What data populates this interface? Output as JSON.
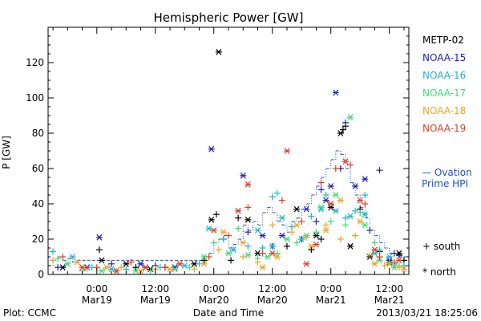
{
  "chart_data": {
    "type": "scatter",
    "title": "Hemispheric Power [GW]",
    "ylabel": "P [GW]",
    "xlabel": "Date and Time",
    "xlim_hours": [
      -10,
      64
    ],
    "ylim": [
      0,
      140
    ],
    "y_ticks": [
      0,
      20,
      40,
      60,
      80,
      100,
      120
    ],
    "x_ticks": [
      {
        "hour": 0,
        "time": "0:00",
        "date": "Mar19"
      },
      {
        "hour": 12,
        "time": "12:00",
        "date": "Mar19"
      },
      {
        "hour": 24,
        "time": "0:00",
        "date": "Mar20"
      },
      {
        "hour": 36,
        "time": "12:00",
        "date": "Mar20"
      },
      {
        "hour": 48,
        "time": "0:00",
        "date": "Mar21"
      },
      {
        "hour": 60,
        "time": "12:00",
        "date": "Mar21"
      }
    ],
    "legend_position": "right",
    "series": [
      {
        "name": "METP-02",
        "color": "#000000",
        "south": [
          [
            0.5,
            14
          ],
          [
            8,
            4
          ],
          [
            14,
            4
          ],
          [
            22,
            8
          ],
          [
            24.5,
            34
          ],
          [
            27.5,
            8
          ],
          [
            29,
            32
          ],
          [
            39,
            16
          ],
          [
            44,
            14
          ],
          [
            46,
            20
          ],
          [
            50.5,
            82
          ],
          [
            51,
            84
          ],
          [
            54,
            37
          ],
          [
            58,
            13
          ],
          [
            62,
            11
          ],
          [
            63,
            8
          ]
        ],
        "north": [
          [
            -7,
            4
          ],
          [
            1,
            8
          ],
          [
            6,
            6
          ],
          [
            11,
            3
          ],
          [
            20,
            6
          ],
          [
            23.5,
            31
          ],
          [
            25,
            126
          ],
          [
            31,
            31
          ],
          [
            33,
            12
          ],
          [
            41,
            37
          ],
          [
            45,
            22
          ],
          [
            48,
            38
          ],
          [
            50,
            80
          ],
          [
            52,
            16
          ],
          [
            56,
            10
          ],
          [
            60,
            7
          ],
          [
            62,
            12
          ]
        ]
      },
      {
        "name": "NOAA-15",
        "color": "#1f1fb5",
        "south": [
          [
            -8,
            4
          ],
          [
            3,
            6
          ],
          [
            12,
            5
          ],
          [
            26,
            20
          ],
          [
            31,
            24
          ],
          [
            36,
            16
          ],
          [
            42,
            20
          ],
          [
            45,
            30
          ],
          [
            46,
            48
          ],
          [
            50,
            60
          ],
          [
            51,
            86
          ],
          [
            56,
            25
          ],
          [
            58,
            59
          ],
          [
            61,
            12
          ]
        ],
        "north": [
          [
            -2,
            4
          ],
          [
            0.5,
            21
          ],
          [
            9,
            6
          ],
          [
            16,
            4
          ],
          [
            23.5,
            71
          ],
          [
            30,
            56
          ],
          [
            34,
            22
          ],
          [
            38,
            22
          ],
          [
            43,
            37
          ],
          [
            47,
            42
          ],
          [
            48,
            50
          ],
          [
            49,
            103
          ],
          [
            53,
            50
          ],
          [
            55,
            54
          ],
          [
            60,
            8
          ]
        ]
      },
      {
        "name": "NOAA-16",
        "color": "#1fb4c8",
        "south": [
          [
            -9,
            13
          ],
          [
            -1,
            4
          ],
          [
            6,
            3
          ],
          [
            13,
            4
          ],
          [
            21,
            6
          ],
          [
            26,
            20
          ],
          [
            31,
            16
          ],
          [
            34,
            15
          ],
          [
            36,
            44
          ],
          [
            37,
            46
          ],
          [
            40,
            27
          ],
          [
            44,
            33
          ],
          [
            47,
            45
          ],
          [
            51,
            32
          ],
          [
            53,
            36
          ],
          [
            55,
            45
          ],
          [
            58,
            14
          ],
          [
            61,
            6
          ],
          [
            63,
            5
          ]
        ],
        "north": [
          [
            -5,
            10
          ],
          [
            3,
            3
          ],
          [
            10,
            4
          ],
          [
            18,
            5
          ],
          [
            23,
            26
          ],
          [
            28,
            14
          ],
          [
            33,
            25
          ],
          [
            36,
            16
          ],
          [
            38,
            32
          ],
          [
            42,
            20
          ],
          [
            46,
            37
          ],
          [
            49,
            36
          ],
          [
            52,
            33
          ],
          [
            55,
            34
          ],
          [
            57,
            12
          ],
          [
            60,
            10
          ]
        ]
      },
      {
        "name": "NOAA-17",
        "color": "#3cdc78",
        "south": [
          [
            -8,
            9
          ],
          [
            -3,
            2
          ],
          [
            4,
            2
          ],
          [
            11,
            2
          ],
          [
            19,
            4
          ],
          [
            24,
            18
          ],
          [
            29,
            26
          ],
          [
            33,
            9
          ],
          [
            37,
            12
          ],
          [
            41,
            18
          ],
          [
            45,
            24
          ],
          [
            48,
            30
          ],
          [
            51,
            28
          ],
          [
            54,
            35
          ],
          [
            57,
            18
          ],
          [
            60,
            7
          ],
          [
            62,
            5
          ]
        ],
        "north": [
          [
            -6,
            6
          ],
          [
            1,
            2
          ],
          [
            8,
            2
          ],
          [
            16,
            3
          ],
          [
            22,
            10
          ],
          [
            27,
            12
          ],
          [
            31,
            11
          ],
          [
            35,
            10
          ],
          [
            39,
            20
          ],
          [
            43,
            22
          ],
          [
            46,
            38
          ],
          [
            49,
            45
          ],
          [
            52,
            89
          ],
          [
            55,
            28
          ],
          [
            58,
            8
          ],
          [
            61,
            4
          ]
        ]
      },
      {
        "name": "NOAA-18",
        "color": "#f0a028",
        "south": [
          [
            -9,
            8
          ],
          [
            -2,
            3
          ],
          [
            5,
            4
          ],
          [
            12,
            3
          ],
          [
            20,
            3
          ],
          [
            25,
            14
          ],
          [
            30,
            10
          ],
          [
            33,
            7
          ],
          [
            36,
            28
          ],
          [
            40,
            24
          ],
          [
            43,
            21
          ],
          [
            47,
            28
          ],
          [
            50,
            20
          ],
          [
            53,
            22
          ],
          [
            56,
            11
          ],
          [
            59,
            5
          ],
          [
            62,
            4
          ]
        ],
        "north": [
          [
            -4,
            7
          ],
          [
            2,
            4
          ],
          [
            9,
            2
          ],
          [
            15,
            3
          ],
          [
            22,
            6
          ],
          [
            26,
            24
          ],
          [
            30,
            18
          ],
          [
            34,
            4
          ],
          [
            37,
            10
          ],
          [
            41,
            28
          ],
          [
            44,
            16
          ],
          [
            47,
            25
          ],
          [
            50,
            42
          ],
          [
            54,
            30
          ],
          [
            57,
            6
          ],
          [
            60,
            6
          ],
          [
            63,
            3
          ]
        ]
      },
      {
        "name": "NOAA-19",
        "color": "#e03c28",
        "south": [
          [
            -7,
            10
          ],
          [
            0,
            4
          ],
          [
            7,
            7
          ],
          [
            14,
            4
          ],
          [
            23,
            10
          ],
          [
            27,
            22
          ],
          [
            31,
            38
          ],
          [
            34,
            12
          ],
          [
            38,
            42
          ],
          [
            42,
            30
          ],
          [
            46,
            52
          ],
          [
            49,
            60
          ],
          [
            52,
            62
          ],
          [
            55,
            40
          ],
          [
            58,
            10
          ],
          [
            61,
            7
          ]
        ],
        "north": [
          [
            -3,
            4
          ],
          [
            4,
            2
          ],
          [
            10,
            4
          ],
          [
            17,
            6
          ],
          [
            24,
            25
          ],
          [
            29,
            36
          ],
          [
            31,
            51
          ],
          [
            36,
            12
          ],
          [
            39,
            70
          ],
          [
            43,
            6
          ],
          [
            45,
            17
          ],
          [
            48,
            40
          ],
          [
            51,
            64
          ],
          [
            54,
            42
          ],
          [
            57,
            14
          ],
          [
            62,
            8
          ]
        ]
      }
    ],
    "ovation": {
      "label": "— Ovation Prime HPI",
      "color": "#1f50c8",
      "points": [
        [
          -10,
          5
        ],
        [
          -9,
          8
        ],
        [
          -8,
          10
        ],
        [
          -7,
          8
        ],
        [
          -6,
          9
        ],
        [
          -5,
          7
        ],
        [
          -4,
          8
        ],
        [
          -3,
          8
        ],
        [
          -2,
          8
        ],
        [
          -1,
          8
        ],
        [
          0,
          8
        ],
        [
          1,
          8
        ],
        [
          2,
          8
        ],
        [
          3,
          8
        ],
        [
          4,
          8
        ],
        [
          5,
          8
        ],
        [
          6,
          8
        ],
        [
          7,
          8
        ],
        [
          8,
          8
        ],
        [
          9,
          8
        ],
        [
          10,
          8
        ],
        [
          11,
          8
        ],
        [
          12,
          8
        ],
        [
          13,
          8
        ],
        [
          14,
          8
        ],
        [
          15,
          8
        ],
        [
          16,
          8
        ],
        [
          17,
          8
        ],
        [
          18,
          8
        ],
        [
          19,
          8
        ],
        [
          20,
          8
        ],
        [
          21,
          8
        ],
        [
          22,
          8
        ],
        [
          23,
          12
        ],
        [
          24,
          18
        ],
        [
          25,
          20
        ],
        [
          26,
          22
        ],
        [
          27,
          15
        ],
        [
          28,
          17
        ],
        [
          29,
          20
        ],
        [
          30,
          28
        ],
        [
          31,
          25
        ],
        [
          32,
          30
        ],
        [
          33,
          28
        ],
        [
          34,
          35
        ],
        [
          35,
          38
        ],
        [
          36,
          35
        ],
        [
          37,
          30
        ],
        [
          38,
          28
        ],
        [
          39,
          24
        ],
        [
          40,
          30
        ],
        [
          41,
          32
        ],
        [
          42,
          37
        ],
        [
          43,
          40
        ],
        [
          44,
          45
        ],
        [
          45,
          50
        ],
        [
          46,
          55
        ],
        [
          47,
          60
        ],
        [
          48,
          65
        ],
        [
          49,
          70
        ],
        [
          50,
          68
        ],
        [
          51,
          60
        ],
        [
          52,
          52
        ],
        [
          53,
          45
        ],
        [
          54,
          38
        ],
        [
          55,
          32
        ],
        [
          56,
          25
        ],
        [
          57,
          22
        ],
        [
          58,
          18
        ],
        [
          59,
          15
        ],
        [
          60,
          12
        ],
        [
          61,
          12
        ],
        [
          62,
          10
        ],
        [
          63,
          10
        ]
      ]
    },
    "markers": {
      "south_label": "+ south",
      "north_label": "* north"
    }
  },
  "footer": {
    "plot_source": "Plot: CCMC",
    "timestamp": "2013/03/21  18:25:06"
  }
}
